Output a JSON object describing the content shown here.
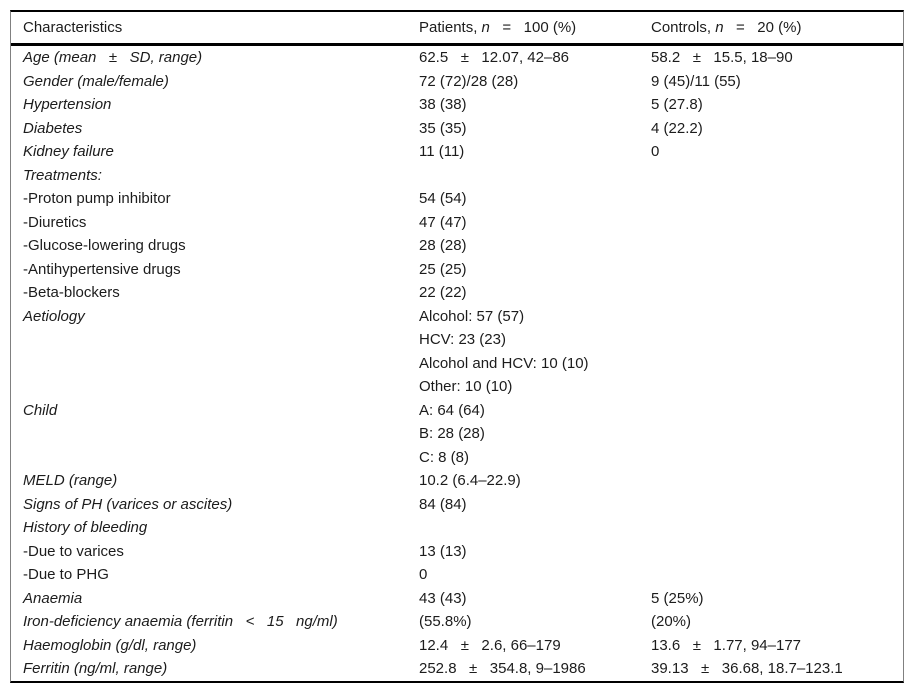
{
  "table": {
    "header": {
      "characteristics": "Characteristics",
      "patients": {
        "pre": "Patients, ",
        "n": "n",
        "post": "   =   100 (%)"
      },
      "controls": {
        "pre": "Controls, ",
        "n": "n",
        "post": "   =   20 (%)"
      }
    },
    "rows": [
      {
        "style": "main",
        "label": "Age (mean   ±   SD, range)",
        "patients": "62.5   ±   12.07, 42–86",
        "controls": "58.2   ±   15.5, 18–90"
      },
      {
        "style": "main",
        "label": "Gender (male/female)",
        "patients": "72 (72)/28 (28)",
        "controls": "9 (45)/11 (55)"
      },
      {
        "style": "main",
        "label": "Hypertension",
        "patients": "38 (38)",
        "controls": "5 (27.8)"
      },
      {
        "style": "main",
        "label": "Diabetes",
        "patients": "35 (35)",
        "controls": "4 (22.2)"
      },
      {
        "style": "main",
        "label": "Kidney failure",
        "patients": "11 (11)",
        "controls": "0"
      },
      {
        "style": "main",
        "label": "Treatments:",
        "patients": "",
        "controls": ""
      },
      {
        "style": "sub",
        "label": "-Proton pump inhibitor",
        "patients": "54 (54)",
        "controls": ""
      },
      {
        "style": "sub",
        "label": "-Diuretics",
        "patients": "47 (47)",
        "controls": ""
      },
      {
        "style": "sub",
        "label": "-Glucose-lowering drugs",
        "patients": "28 (28)",
        "controls": ""
      },
      {
        "style": "sub",
        "label": "-Antihypertensive drugs",
        "patients": "25 (25)",
        "controls": ""
      },
      {
        "style": "sub",
        "label": "-Beta-blockers",
        "patients": "22 (22)",
        "controls": ""
      },
      {
        "style": "main",
        "label": "Aetiology",
        "patients": "Alcohol: 57 (57)\nHCV: 23 (23)\nAlcohol and HCV: 10 (10)\nOther: 10 (10)",
        "controls": ""
      },
      {
        "style": "main",
        "label": "Child",
        "patients": "A: 64 (64)\nB: 28 (28)\nC: 8 (8)",
        "controls": ""
      },
      {
        "style": "main",
        "label": "MELD (range)",
        "patients": "10.2 (6.4–22.9)",
        "controls": ""
      },
      {
        "style": "main",
        "label": "Signs of PH (varices or ascites)",
        "patients": "84 (84)",
        "controls": ""
      },
      {
        "style": "main",
        "label": "History of bleeding",
        "patients": "",
        "controls": ""
      },
      {
        "style": "sub",
        "label": "-Due to varices",
        "patients": "13 (13)",
        "controls": ""
      },
      {
        "style": "sub",
        "label": "-Due to PHG",
        "patients": "0",
        "controls": ""
      },
      {
        "style": "main",
        "label": "Anaemia",
        "patients": "43 (43)",
        "controls": "5 (25%)"
      },
      {
        "style": "main",
        "label": "Iron-deficiency anaemia (ferritin   <   15   ng/ml)",
        "patients": "(55.8%)",
        "controls": "(20%)"
      },
      {
        "style": "main",
        "label": "Haemoglobin (g/dl, range)",
        "patients": "12.4   ±   2.6, 66–179",
        "controls": "13.6   ±   1.77, 94–177"
      },
      {
        "style": "main",
        "label": "Ferritin (ng/ml, range)",
        "patients": "252.8   ±   354.8, 9–1986",
        "controls": "39.13   ±   36.68, 18.7–123.1"
      }
    ],
    "colors": {
      "background": "#ffffff",
      "text": "#1c1c1c",
      "rule_heavy": "#000000",
      "rule_side": "#808080"
    }
  }
}
